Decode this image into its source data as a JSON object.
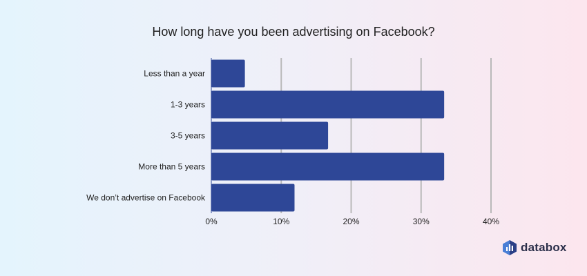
{
  "chart_data": {
    "type": "bar",
    "orientation": "horizontal",
    "title": "How long have you been advertising on Facebook?",
    "categories": [
      "Less than a year",
      "1-3 years",
      "3-5 years",
      "More than 5 years",
      "We don’t advertise on Facebook"
    ],
    "values": [
      4.8,
      33.3,
      16.7,
      33.3,
      11.9
    ],
    "xlim": [
      0,
      40
    ],
    "xticks": [
      0,
      10,
      20,
      30,
      40
    ],
    "xtick_labels": [
      "0%",
      "10%",
      "20%",
      "30%",
      "40%"
    ],
    "grid": true,
    "colors": {
      "bar": "#2e4797",
      "grid": "#b9b9b9"
    }
  },
  "brand": {
    "name": "databox",
    "icon": "databox-logo-icon",
    "colors": [
      "#4a7fd6",
      "#2b3f86"
    ]
  }
}
